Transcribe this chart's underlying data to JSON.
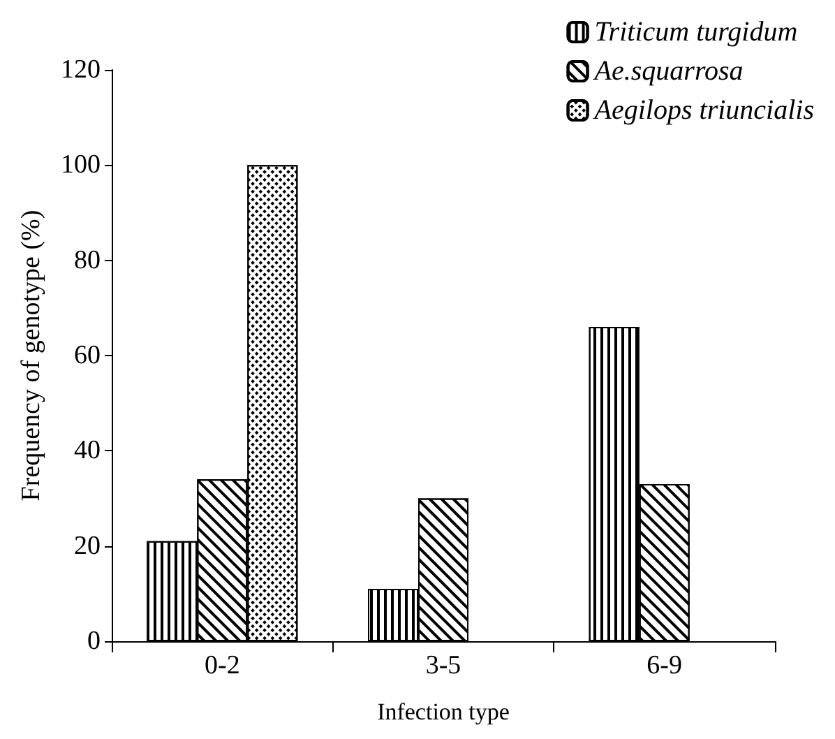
{
  "chart_data": {
    "type": "bar",
    "xlabel": "Infection type",
    "ylabel": "Frequency of genotype (%)",
    "categories": [
      "0-2",
      "3-5",
      "6-9"
    ],
    "series": [
      {
        "name": "Triticum turgidum",
        "color": "#000000",
        "values": [
          21,
          11,
          66
        ]
      },
      {
        "name": "Ae.squarrosa",
        "color": "#000000",
        "values": [
          34,
          30,
          33
        ]
      },
      {
        "name": "Aegilops triuncialis",
        "color": "#000000",
        "values": [
          100,
          null,
          null
        ]
      }
    ],
    "ylim": [
      0,
      120
    ],
    "yticks": [
      0,
      20,
      40,
      60,
      80,
      100,
      120
    ],
    "grid": false,
    "legend": "top right"
  }
}
